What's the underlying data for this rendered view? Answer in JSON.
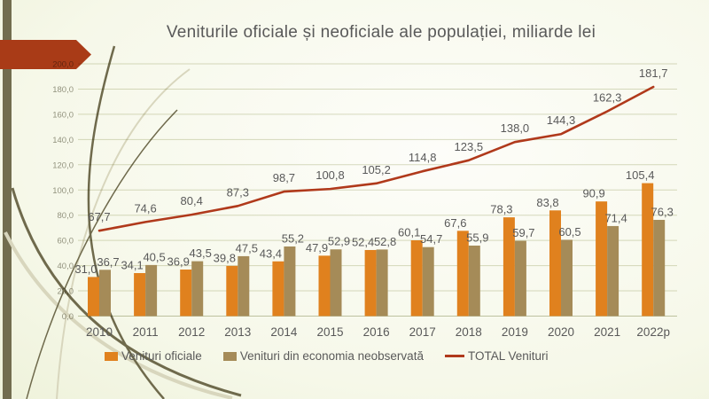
{
  "slide": {
    "title": "Veniturile oficiale și neoficiale ale populației, miliarde lei"
  },
  "chart_data": {
    "type": "bar",
    "title": "Veniturile oficiale și neoficiale ale populației, miliarde lei",
    "categories": [
      "2010",
      "2011",
      "2012",
      "2013",
      "2014",
      "2015",
      "2016",
      "2017",
      "2018",
      "2019",
      "2020",
      "2021",
      "2022p"
    ],
    "series": [
      {
        "name": "Venituri oficiale",
        "type": "bar",
        "color": "#E0811E",
        "values": [
          31.0,
          34.1,
          36.9,
          39.8,
          43.4,
          47.9,
          52.4,
          60.1,
          67.6,
          78.3,
          83.8,
          90.9,
          105.4
        ]
      },
      {
        "name": "Venituri din economia neobservată",
        "type": "bar",
        "color": "#A58B58",
        "values": [
          36.7,
          40.5,
          43.5,
          47.5,
          55.2,
          52.9,
          52.8,
          54.7,
          55.9,
          59.7,
          60.5,
          71.4,
          76.3
        ]
      },
      {
        "name": "TOTAL Venituri",
        "type": "line",
        "color": "#B0391B",
        "values": [
          67.7,
          74.6,
          80.4,
          87.3,
          98.7,
          100.8,
          105.2,
          114.8,
          123.5,
          138.0,
          144.3,
          162.3,
          181.7
        ]
      }
    ],
    "xlabel": "",
    "ylabel": "",
    "ylim": [
      0,
      200
    ],
    "ytick_step": 20,
    "y_tick_labels": [
      "0,0",
      "20,0",
      "40,0",
      "60,0",
      "80,0",
      "100,0",
      "120,0",
      "140,0",
      "160,0",
      "180,0",
      "200,0"
    ],
    "grid": true,
    "legend_position": "bottom",
    "decimal_separator": ",",
    "value_labels_shown": true
  },
  "decor": {
    "arrow_color": "#A93B17",
    "sidebar_color": "#726D4F",
    "curve_dark": "#6F6A4C",
    "curve_light": "#D8D6BD",
    "grid_color": "#D9DCC5",
    "axis_line_color": "#C3C7AC",
    "label_color": "#595959",
    "ytick_color": "#98978A"
  }
}
